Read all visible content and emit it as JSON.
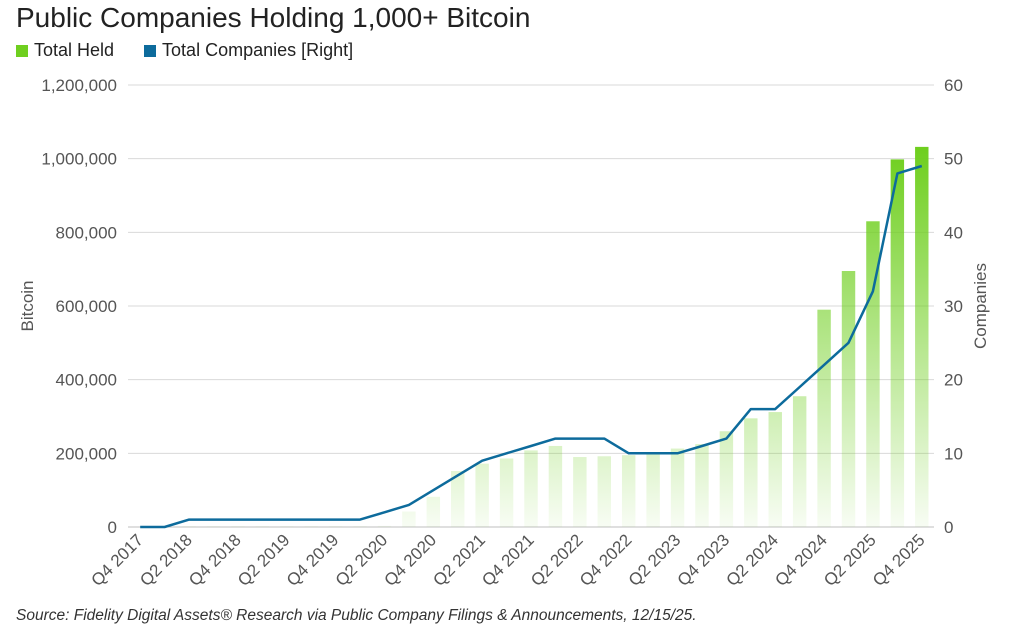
{
  "chart_data": {
    "type": "bar+line",
    "title": "Public Companies Holding 1,000+ Bitcoin",
    "legend": [
      "Total Held",
      "Total Companies [Right]"
    ],
    "legend_position": "top-left",
    "ylabel": "Bitcoin",
    "y2label": "Companies",
    "ylim": [
      0,
      1200000
    ],
    "y2lim": [
      0,
      60
    ],
    "yticks": [
      "0",
      "200,000",
      "400,000",
      "600,000",
      "800,000",
      "1,000,000",
      "1,200,000"
    ],
    "y2ticks": [
      "0",
      "10",
      "20",
      "30",
      "40",
      "50",
      "60"
    ],
    "grid": true,
    "categories": [
      "Q4 2017",
      "Q1 2018",
      "Q2 2018",
      "Q3 2018",
      "Q4 2018",
      "Q1 2019",
      "Q2 2019",
      "Q3 2019",
      "Q4 2019",
      "Q1 2020",
      "Q2 2020",
      "Q3 2020",
      "Q4 2020",
      "Q1 2021",
      "Q2 2021",
      "Q3 2021",
      "Q4 2021",
      "Q1 2022",
      "Q2 2022",
      "Q3 2022",
      "Q4 2022",
      "Q1 2023",
      "Q2 2023",
      "Q3 2023",
      "Q4 2023",
      "Q1 2024",
      "Q2 2024",
      "Q3 2024",
      "Q4 2024",
      "Q1 2025",
      "Q2 2025",
      "Q3 2025",
      "Q4 2025"
    ],
    "tick_labels": [
      "Q4 2017",
      "Q2 2018",
      "Q4 2018",
      "Q2 2019",
      "Q4 2019",
      "Q2 2020",
      "Q4 2020",
      "Q2 2021",
      "Q4 2021",
      "Q2 2022",
      "Q4 2022",
      "Q2 2023",
      "Q4 2023",
      "Q2 2024",
      "Q4 2024",
      "Q2 2025",
      "Q4 2025"
    ],
    "series": [
      {
        "name": "Total Held",
        "axis": "left",
        "color": "#6fcf1f",
        "values": [
          0,
          0,
          2000,
          2000,
          2000,
          2000,
          2000,
          2000,
          2000,
          2000,
          3000,
          42000,
          82000,
          152000,
          172000,
          186000,
          208000,
          220000,
          190000,
          192000,
          195000,
          198000,
          213000,
          225000,
          260000,
          295000,
          312000,
          355000,
          590000,
          695000,
          830000,
          998000,
          1032000
        ]
      },
      {
        "name": "Total Companies [Right]",
        "axis": "right",
        "color": "#0d6b9c",
        "values": [
          0,
          0,
          1,
          1,
          1,
          1,
          1,
          1,
          1,
          1,
          2,
          3,
          5,
          7,
          9,
          10,
          11,
          12,
          12,
          12,
          10,
          10,
          10,
          11,
          12,
          16,
          16,
          19,
          22,
          25,
          32,
          48,
          49
        ]
      }
    ]
  },
  "source": "Source: Fidelity Digital Assets® Research via Public Company Filings & Announcements, 12/15/25."
}
